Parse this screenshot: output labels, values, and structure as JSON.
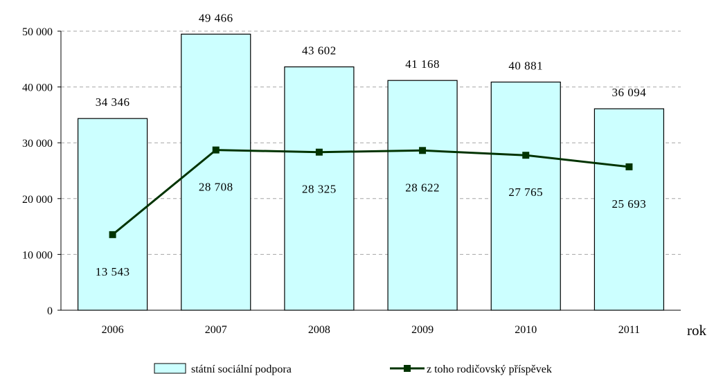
{
  "chart_data": {
    "type": "bar",
    "categories": [
      "2006",
      "2007",
      "2008",
      "2009",
      "2010",
      "2011"
    ],
    "series": [
      {
        "name": "státní sociální podpora",
        "type": "bar",
        "color": "#ccffff",
        "values": [
          34346,
          49466,
          43602,
          41168,
          40881,
          36094
        ],
        "labels": [
          "34 346",
          "49 466",
          "43 602",
          "41 168",
          "40 881",
          "36 094"
        ]
      },
      {
        "name": "z toho rodičovský příspěvek",
        "type": "line",
        "color": "#003300",
        "values": [
          13543,
          28708,
          28325,
          28622,
          27765,
          25693
        ],
        "labels": [
          "13 543",
          "28 708",
          "28 325",
          "28 622",
          "27 765",
          "25 693"
        ]
      }
    ],
    "title": "",
    "xlabel": "rok",
    "ylabel": "",
    "ylim": [
      0,
      50000
    ],
    "yticks": [
      0,
      10000,
      20000,
      30000,
      40000,
      50000
    ],
    "ytick_labels": [
      "0",
      "10 000",
      "20 000",
      "30 000",
      "40 000",
      "50 000"
    ],
    "grid": true,
    "legend_position": "bottom"
  }
}
